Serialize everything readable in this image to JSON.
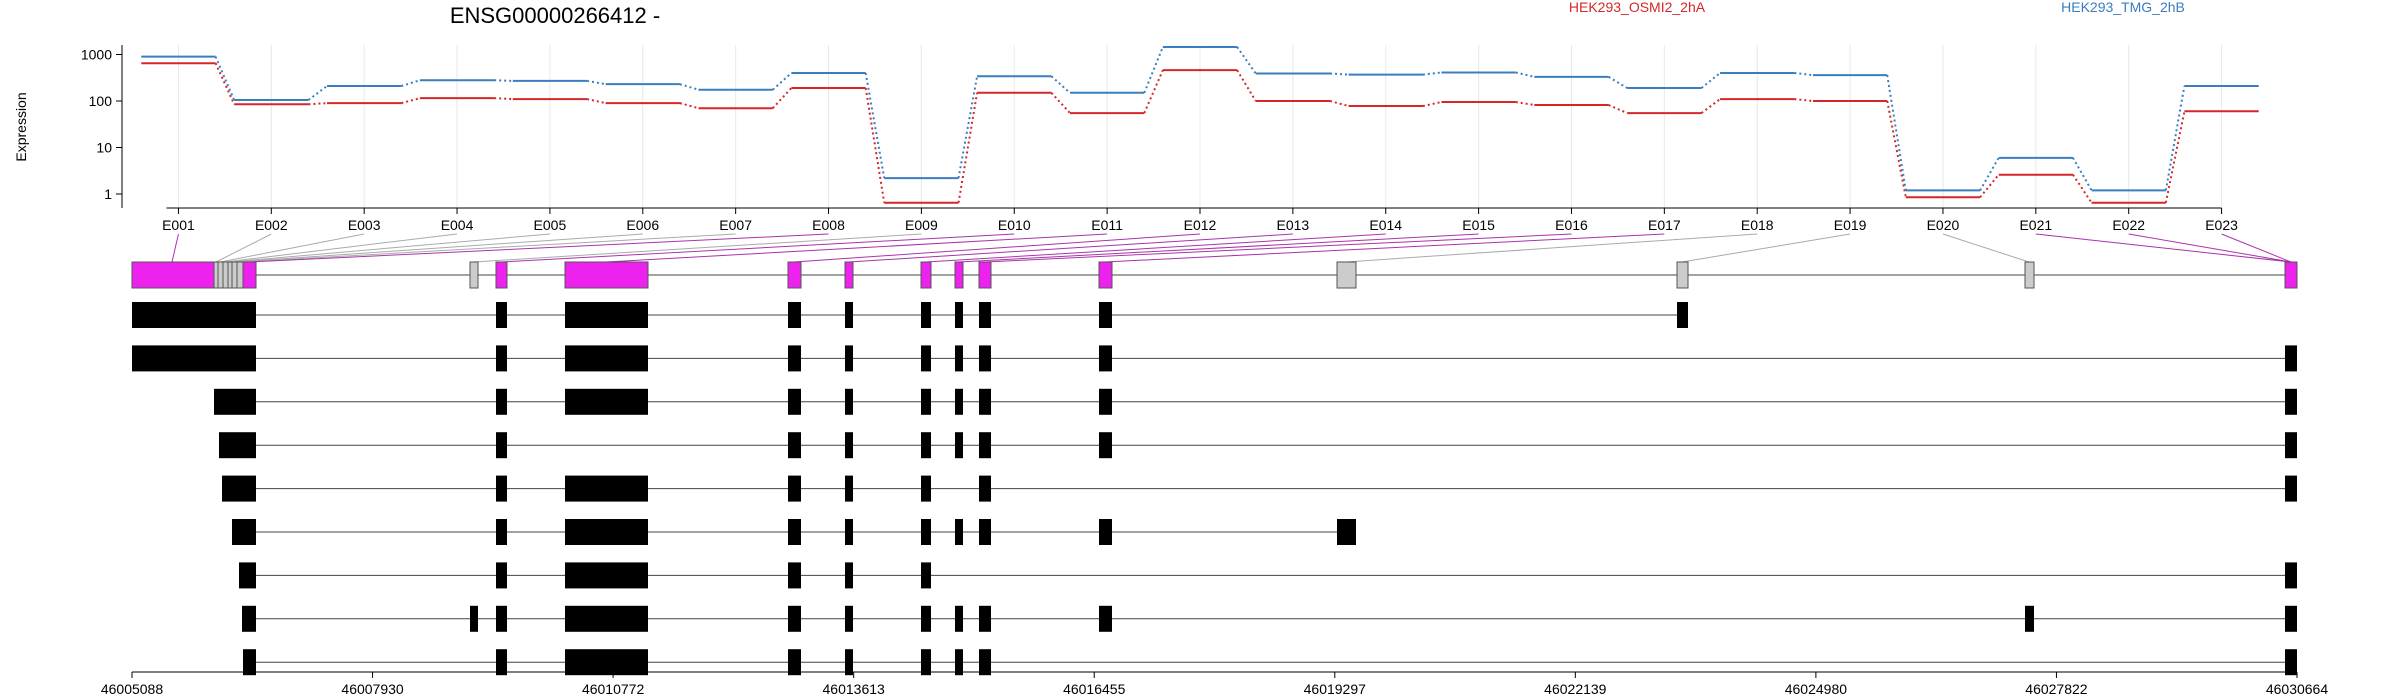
{
  "chart_data": {
    "type": "line",
    "title": "ENSG00000266412 -",
    "ylabel": "Expression",
    "y_scale": "log",
    "y_ticks": [
      1,
      10,
      100,
      1000
    ],
    "y_tick_labels": [
      "1",
      "10",
      "100",
      "1000"
    ],
    "categories": [
      "E001",
      "E002",
      "E003",
      "E004",
      "E005",
      "E006",
      "E007",
      "E008",
      "E009",
      "E010",
      "E011",
      "E012",
      "E013",
      "E014",
      "E015",
      "E016",
      "E017",
      "E018",
      "E019",
      "E020",
      "E021",
      "E022",
      "E023"
    ],
    "series": [
      {
        "name": "HEK293_OSMI2_2hA",
        "color": "#d62728",
        "values": [
          650,
          85,
          90,
          115,
          110,
          90,
          70,
          190,
          0.65,
          150,
          55,
          460,
          100,
          78,
          95,
          82,
          55,
          110,
          100,
          0.85,
          2.6,
          0.65,
          60
        ]
      },
      {
        "name": "HEK293_TMG_2hB",
        "color": "#3a7ebf",
        "values": [
          900,
          105,
          210,
          280,
          270,
          230,
          175,
          400,
          2.2,
          340,
          150,
          1450,
          390,
          370,
          410,
          330,
          190,
          400,
          360,
          1.2,
          6.0,
          1.2,
          210
        ]
      }
    ],
    "genomic_axis": {
      "tick_labels": [
        "46005088",
        "46007930",
        "46010772",
        "46013613",
        "46016455",
        "46019297",
        "46022139",
        "46024980",
        "46027822",
        "46030664"
      ]
    }
  },
  "colors": {
    "exon_highlight": "#ee22ee",
    "exon_other": "#cccccc",
    "transcript": "#000000",
    "connector": "#aa33aa",
    "grid": "#e8e8e8"
  }
}
